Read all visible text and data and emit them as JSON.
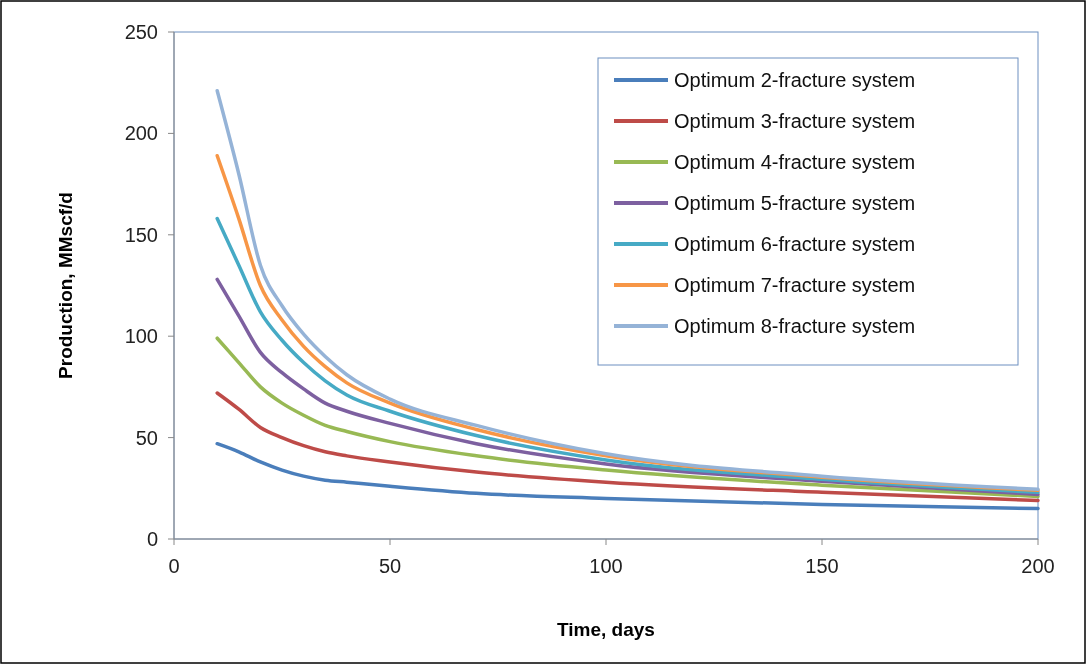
{
  "chart_data": {
    "type": "line",
    "xlabel": "Time, days",
    "ylabel": "Production, MMscf/d",
    "x": [
      10,
      15,
      20,
      25,
      30,
      35,
      40,
      50,
      70,
      100,
      150,
      200
    ],
    "xlim": [
      0,
      200
    ],
    "xticks": [
      0,
      50,
      100,
      150,
      200
    ],
    "ylim": [
      0,
      250
    ],
    "yticks": [
      0,
      50,
      100,
      150,
      200,
      250
    ],
    "grid": false,
    "legend": "top right",
    "marker": "none",
    "line_style": "solid",
    "series": [
      {
        "name": "Optimum 2-fracture system",
        "color": "#4a7ebb",
        "values": [
          47,
          43,
          38,
          34,
          31,
          29,
          28,
          26,
          22.5,
          20,
          17,
          15
        ]
      },
      {
        "name": "Optimum 3-fracture system",
        "color": "#be4b48",
        "values": [
          72,
          64,
          55,
          50,
          46,
          43,
          41,
          38,
          33,
          28,
          23,
          19
        ]
      },
      {
        "name": "Optimum 4-fracture system",
        "color": "#98b954",
        "values": [
          99,
          87,
          75,
          67,
          61,
          56,
          53,
          48,
          41,
          34,
          26.5,
          21
        ]
      },
      {
        "name": "Optimum 5-fracture system",
        "color": "#7d60a0",
        "values": [
          128,
          110,
          92,
          82,
          74,
          67,
          63,
          57,
          47,
          37,
          28.5,
          22
        ]
      },
      {
        "name": "Optimum 6-fracture system",
        "color": "#46aac5",
        "values": [
          158,
          135,
          112,
          98,
          87,
          78,
          71,
          63,
          51,
          39,
          29.5,
          23
        ]
      },
      {
        "name": "Optimum 7-fracture system",
        "color": "#f79646",
        "values": [
          189,
          158,
          125,
          108,
          95,
          85,
          77,
          67,
          54,
          41,
          30.5,
          24
        ]
      },
      {
        "name": "Optimum 8-fracture system",
        "color": "#95b3d7",
        "values": [
          221,
          180,
          135,
          115,
          101,
          90,
          81,
          69,
          56,
          42,
          31,
          24.5
        ]
      }
    ]
  }
}
